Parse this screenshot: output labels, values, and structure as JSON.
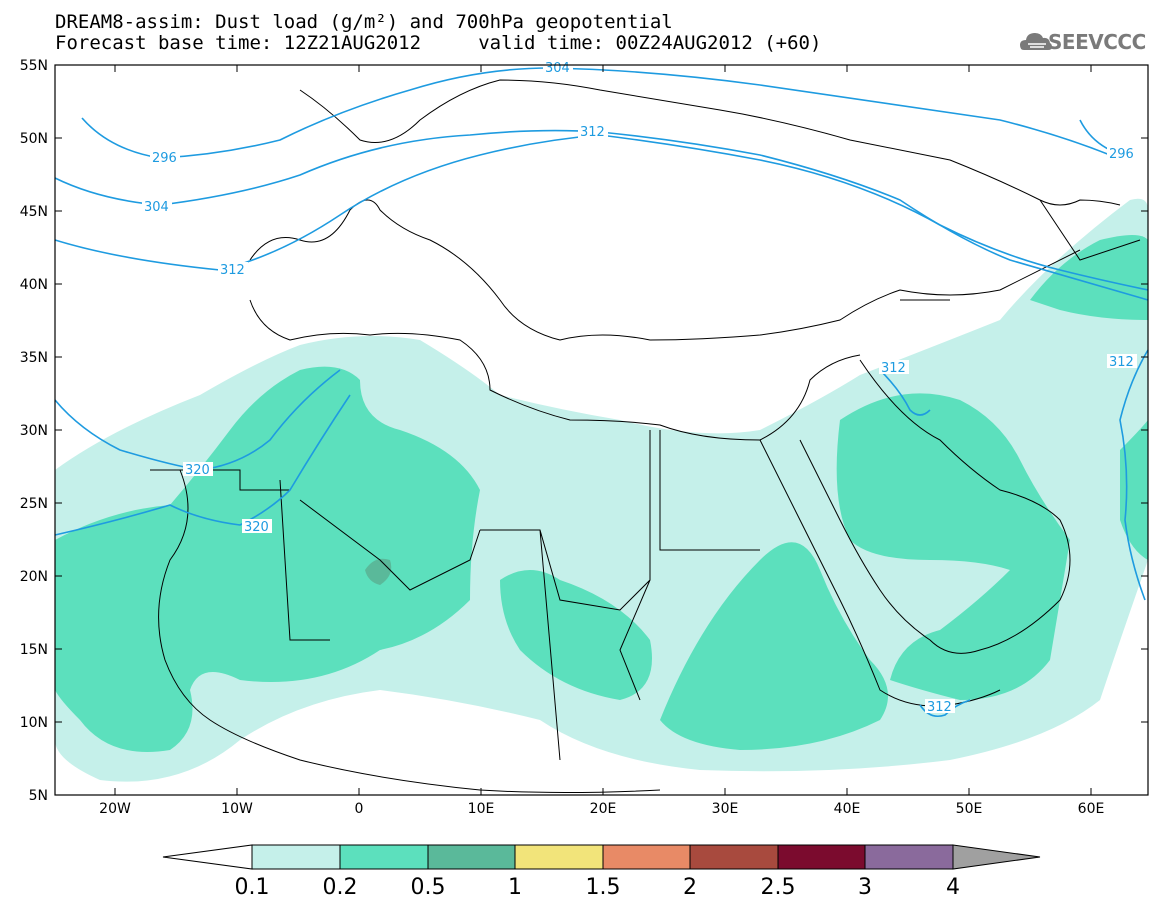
{
  "header": {
    "title_line1": "DREAM8-assim: Dust load (g/m²) and 700hPa geopotential",
    "title_line2": "Forecast base time: 12Z21AUG2012     valid time: 00Z24AUG2012 (+60)",
    "logo_text": "SEEVCCC"
  },
  "map": {
    "lat_labels": [
      "55N",
      "50N",
      "45N",
      "40N",
      "35N",
      "30N",
      "25N",
      "20N",
      "15N",
      "10N",
      "5N"
    ],
    "lon_labels": [
      "20W",
      "10W",
      "0",
      "10E",
      "20E",
      "30E",
      "40E",
      "50E",
      "60E"
    ],
    "contour_labels": [
      "304",
      "312",
      "296",
      "304",
      "312",
      "320",
      "320",
      "296",
      "312",
      "312",
      "312"
    ],
    "colors": {
      "contour": "#1e9be0",
      "coast": "#000000",
      "ocean": "#ffffff"
    }
  },
  "legend": {
    "levels": [
      "0.1",
      "0.2",
      "0.5",
      "1",
      "1.5",
      "2",
      "2.5",
      "3",
      "4"
    ],
    "colors": [
      "#c5f0ea",
      "#5ce0bd",
      "#5ab99a",
      "#f2e47a",
      "#e88a66",
      "#a84a3e",
      "#7b0b2e",
      "#8a6a9c",
      "#a0a0a0"
    ]
  }
}
